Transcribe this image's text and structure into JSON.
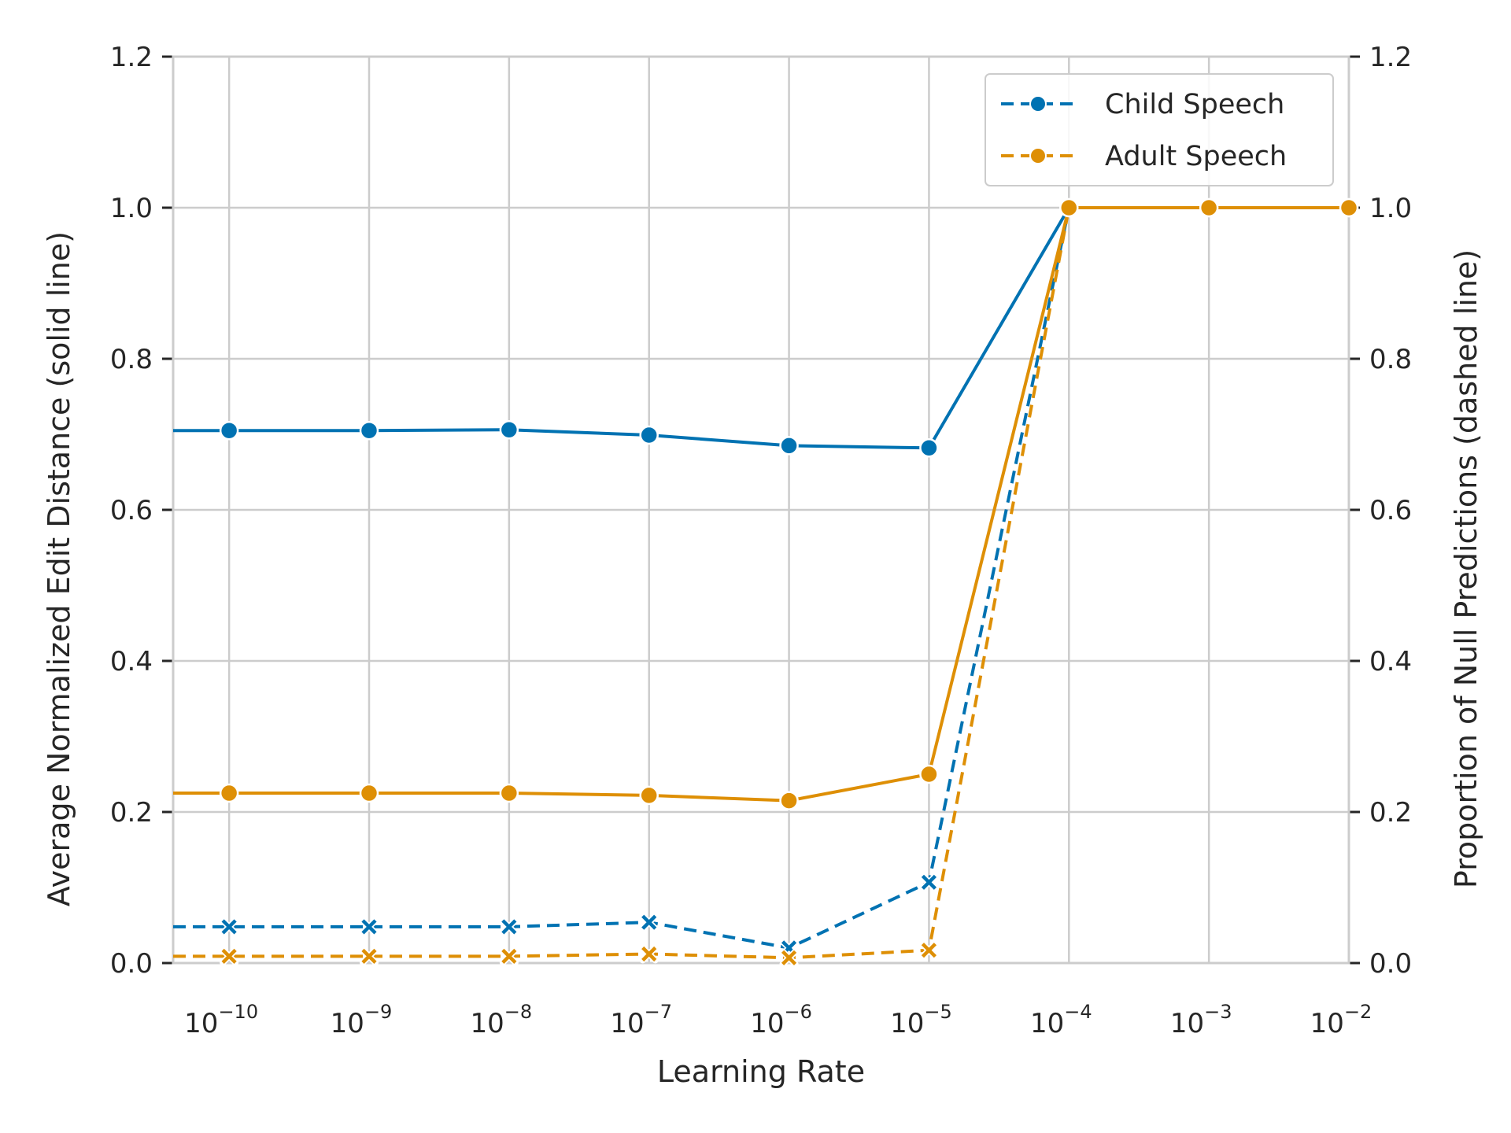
{
  "chart_data": {
    "type": "line",
    "xlabel": "Learning Rate",
    "ylabel_left": "Average Normalized Edit Distance (solid line)",
    "ylabel_right": "Proportion of Null Predictions (dashed line)",
    "x_scale": "log",
    "x_exponents": [
      -10,
      -9,
      -8,
      -7,
      -6,
      -5,
      -4,
      -3,
      -2
    ],
    "xtick_base": "10",
    "xtick_exponent_labels": [
      "−10",
      "−9",
      "−8",
      "−7",
      "−6",
      "−5",
      "−4",
      "−3",
      "−2"
    ],
    "xlim": [
      "10^-10.4",
      "10^-2"
    ],
    "ylim_left": [
      0,
      1.2
    ],
    "ylim_right": [
      0,
      1.2
    ],
    "yticks_left": [
      "0.0",
      "0.2",
      "0.4",
      "0.6",
      "0.8",
      "1.0",
      "1.2"
    ],
    "yticks_right": [
      "0.0",
      "0.2",
      "0.4",
      "0.6",
      "0.8",
      "1.0",
      "1.2"
    ],
    "grid": true,
    "legend_position": "top-right",
    "legend": [
      {
        "name": "Child Speech",
        "color": "#0072b2"
      },
      {
        "name": "Adult Speech",
        "color": "#de8f05"
      }
    ],
    "series": [
      {
        "name": "Child Speech",
        "metric": "edit distance",
        "axis": "left",
        "style": "solid",
        "marker": "circle",
        "color": "#0072b2",
        "values": [
          0.705,
          0.705,
          0.706,
          0.699,
          0.685,
          0.682,
          1.0,
          1.0,
          1.0
        ]
      },
      {
        "name": "Adult Speech",
        "metric": "edit distance",
        "axis": "left",
        "style": "solid",
        "marker": "circle",
        "color": "#de8f05",
        "values": [
          0.225,
          0.225,
          0.225,
          0.222,
          0.215,
          0.25,
          1.0,
          1.0,
          1.0
        ]
      },
      {
        "name": "Child Speech",
        "metric": "null predictions",
        "axis": "right",
        "style": "dashed",
        "marker": "x",
        "color": "#0072b2",
        "values": [
          0.048,
          0.048,
          0.048,
          0.054,
          0.02,
          0.107,
          1.0,
          1.0,
          1.0
        ]
      },
      {
        "name": "Adult Speech",
        "metric": "null predictions",
        "axis": "right",
        "style": "dashed",
        "marker": "x",
        "color": "#de8f05",
        "values": [
          0.009,
          0.009,
          0.009,
          0.012,
          0.007,
          0.017,
          1.0,
          1.0,
          1.0
        ]
      }
    ]
  }
}
